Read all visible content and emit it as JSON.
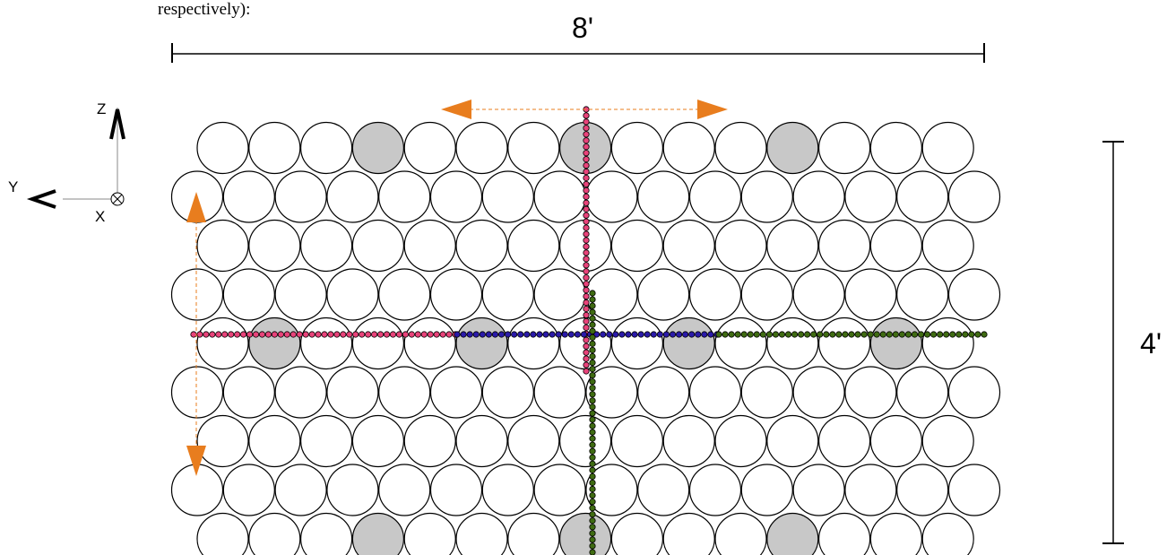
{
  "caption_fragment": "respectively):",
  "dimensions": {
    "width_label": "8'",
    "height_label": "4'"
  },
  "axes": {
    "z_label": "Z",
    "y_label": "Y",
    "x_label": "X"
  },
  "grid": {
    "row_counts": [
      15,
      16,
      15,
      16,
      15,
      16,
      15,
      16,
      15
    ],
    "shaded": [
      {
        "row": 0,
        "col": 3
      },
      {
        "row": 0,
        "col": 7
      },
      {
        "row": 0,
        "col": 11
      },
      {
        "row": 4,
        "col": 1
      },
      {
        "row": 4,
        "col": 5
      },
      {
        "row": 4,
        "col": 9
      },
      {
        "row": 4,
        "col": 13
      },
      {
        "row": 8,
        "col": 3
      },
      {
        "row": 8,
        "col": 7
      },
      {
        "row": 8,
        "col": 11
      }
    ]
  },
  "colors": {
    "shaded_fill": "#c8c8c8",
    "circle_fill": "#ffffff",
    "outline": "#000000",
    "arrow": "#e87d1e",
    "line_pink": "#e8437a",
    "line_blue": "#2a1aa8",
    "line_green": "#3f6b12"
  }
}
